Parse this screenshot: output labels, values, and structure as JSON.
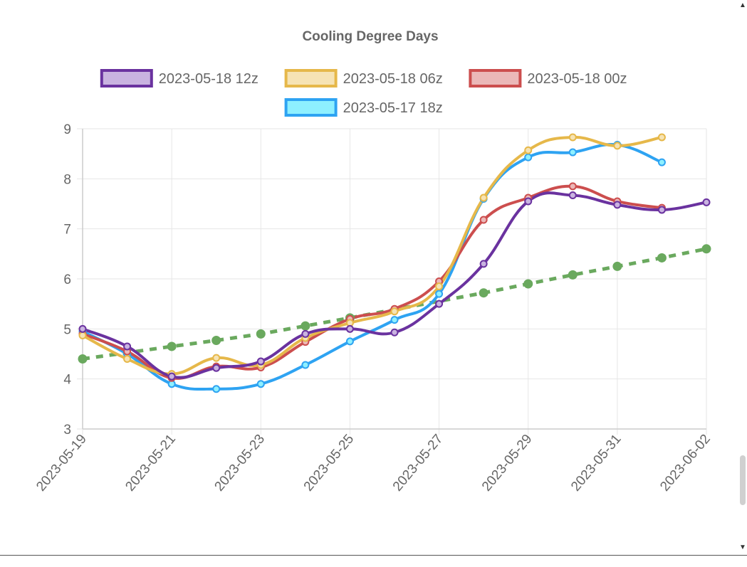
{
  "colors": {
    "series_12z": "#6a329f",
    "series_06z": "#e6b84a",
    "series_00z": "#cc4e4e",
    "series_18z": "#2ea3f2",
    "normal": "#6aa95e",
    "text": "#666666",
    "grid": "#e6e6e6"
  },
  "icons": {
    "scroll_up": "▲",
    "scroll_down": "▼"
  },
  "chart_data": {
    "type": "line",
    "title": "Cooling Degree Days",
    "xlabel": "",
    "ylabel": "",
    "ylim": [
      3,
      9
    ],
    "yticks": [
      "3",
      "4",
      "5",
      "6",
      "7",
      "8",
      "9"
    ],
    "x": [
      "2023-05-19",
      "2023-05-20",
      "2023-05-21",
      "2023-05-22",
      "2023-05-23",
      "2023-05-24",
      "2023-05-25",
      "2023-05-26",
      "2023-05-27",
      "2023-05-28",
      "2023-05-29",
      "2023-05-30",
      "2023-05-31",
      "2023-06-01",
      "2023-06-02"
    ],
    "xticks": [
      "2023-05-19",
      "2023-05-21",
      "2023-05-23",
      "2023-05-25",
      "2023-05-27",
      "2023-05-29",
      "2023-05-31",
      "2023-06-02"
    ],
    "grid": true,
    "legend_position": "top",
    "series": [
      {
        "name": "2023-05-18 12z",
        "color": "#6a329f",
        "fill": "#c9b3e0",
        "values": [
          5.0,
          4.65,
          4.05,
          4.22,
          4.35,
          4.9,
          5.0,
          4.93,
          5.5,
          6.3,
          7.55,
          7.67,
          7.48,
          7.38,
          7.53
        ]
      },
      {
        "name": "2023-05-18 06z",
        "color": "#e6b84a",
        "fill": "#f6e3b4",
        "values": [
          4.87,
          4.4,
          4.1,
          4.42,
          4.28,
          4.82,
          5.12,
          5.35,
          5.85,
          7.62,
          8.57,
          8.83,
          8.66,
          8.83,
          null
        ]
      },
      {
        "name": "2023-05-18 00z",
        "color": "#cc4e4e",
        "fill": "#ebb8b8",
        "values": [
          4.9,
          4.55,
          4.02,
          4.25,
          4.23,
          4.74,
          5.2,
          5.4,
          5.95,
          7.18,
          7.62,
          7.85,
          7.55,
          7.42,
          null
        ]
      },
      {
        "name": "2023-05-17 18z",
        "color": "#2ea3f2",
        "fill": "#8ef0ff",
        "values": [
          4.95,
          4.5,
          3.9,
          3.8,
          3.9,
          4.28,
          4.75,
          5.18,
          5.7,
          7.6,
          8.43,
          8.53,
          8.68,
          8.33,
          null
        ]
      },
      {
        "name": "",
        "color": "#6aa95e",
        "dashed": true,
        "in_legend": false,
        "values": [
          4.4,
          null,
          4.65,
          4.77,
          4.9,
          5.06,
          5.22,
          null,
          null,
          5.72,
          5.9,
          6.08,
          6.25,
          6.42,
          6.6
        ]
      }
    ]
  }
}
